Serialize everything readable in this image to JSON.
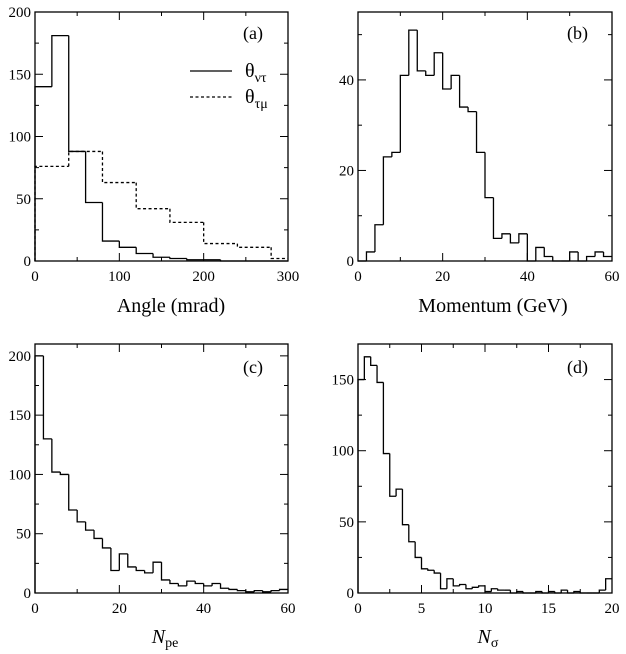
{
  "chart_data": [
    {
      "type": "bar",
      "panel_label": "(a)",
      "xlabel": "Angle  (mrad)",
      "ylabel": "",
      "xlim": [
        0,
        300
      ],
      "ylim": [
        0,
        200
      ],
      "xticks": [
        "0",
        "100",
        "200",
        "300"
      ],
      "yticks": [
        "0",
        "50",
        "100",
        "150",
        "200"
      ],
      "bin_edges": [
        0,
        20,
        40,
        60,
        80,
        100,
        120,
        140,
        160,
        180,
        200,
        220,
        240,
        260,
        280,
        300
      ],
      "series": [
        {
          "name": "θ_ντ",
          "legend_main": "θ",
          "legend_sub": "ντ",
          "style": "solid",
          "edges": [
            0,
            20,
            40,
            60,
            80,
            100,
            120,
            140,
            160,
            180,
            200,
            220,
            240,
            260,
            280,
            300
          ],
          "values": [
            140,
            181,
            88,
            47,
            16,
            11,
            6,
            3,
            2,
            1,
            1,
            0,
            0,
            0,
            0
          ]
        },
        {
          "name": "θ_τμ",
          "legend_main": "θ",
          "legend_sub": "τμ",
          "style": "dashed",
          "edges": [
            0,
            40,
            80,
            120,
            160,
            200,
            240,
            280,
            300
          ],
          "values": [
            76,
            88,
            63,
            42,
            31,
            14,
            11,
            2
          ]
        }
      ]
    },
    {
      "type": "bar",
      "panel_label": "(b)",
      "xlabel": "Momentum  (GeV)",
      "xlim": [
        0,
        60
      ],
      "ylim": [
        0,
        55
      ],
      "xticks": [
        "0",
        "20",
        "40",
        "60"
      ],
      "yticks": [
        "0",
        "20",
        "40"
      ],
      "series": [
        {
          "name": "momentum",
          "style": "solid",
          "edges": [
            0,
            2,
            4,
            6,
            8,
            10,
            12,
            14,
            16,
            18,
            20,
            22,
            24,
            26,
            28,
            30,
            32,
            34,
            36,
            38,
            40,
            42,
            44,
            46,
            48,
            50,
            52,
            54,
            56,
            58,
            60
          ],
          "values": [
            0,
            2,
            8,
            23,
            24,
            41,
            51,
            42,
            41,
            46,
            38,
            41,
            34,
            33,
            24,
            14,
            5,
            6,
            4,
            6,
            0,
            3,
            1,
            0,
            0,
            2,
            0,
            1,
            2,
            1
          ]
        }
      ]
    },
    {
      "type": "bar",
      "panel_label": "(c)",
      "xlabel_main": "N",
      "xlabel_sub": "pe",
      "xlim": [
        0,
        60
      ],
      "ylim": [
        0,
        210
      ],
      "xticks": [
        "0",
        "20",
        "40",
        "60"
      ],
      "yticks": [
        "0",
        "50",
        "100",
        "150",
        "200"
      ],
      "series": [
        {
          "name": "N_pe",
          "style": "solid",
          "edges": [
            0,
            2,
            4,
            6,
            8,
            10,
            12,
            14,
            16,
            18,
            20,
            22,
            24,
            26,
            28,
            30,
            32,
            34,
            36,
            38,
            40,
            42,
            44,
            46,
            48,
            50,
            52,
            54,
            56,
            58,
            60
          ],
          "values": [
            200,
            130,
            102,
            100,
            70,
            60,
            53,
            46,
            38,
            19,
            33,
            22,
            19,
            17,
            26,
            11,
            8,
            6,
            10,
            8,
            6,
            8,
            4,
            3,
            2,
            1,
            2,
            1,
            2,
            3
          ]
        }
      ]
    },
    {
      "type": "bar",
      "panel_label": "(d)",
      "xlabel_main": "N",
      "xlabel_sub": "σ",
      "xlim": [
        0,
        20
      ],
      "ylim": [
        0,
        175
      ],
      "xticks": [
        "0",
        "5",
        "10",
        "15",
        "20"
      ],
      "yticks": [
        "0",
        "50",
        "100",
        "150"
      ],
      "series": [
        {
          "name": "N_sigma",
          "style": "solid",
          "edges": [
            0,
            0.5,
            1,
            1.5,
            2,
            2.5,
            3,
            3.5,
            4,
            4.5,
            5,
            5.5,
            6,
            6.5,
            7,
            7.5,
            8,
            8.5,
            9,
            9.5,
            10,
            10.5,
            11,
            11.5,
            12,
            12.5,
            13,
            13.5,
            14,
            14.5,
            15,
            15.5,
            16,
            16.5,
            17,
            17.5,
            18,
            18.5,
            19,
            19.5,
            20
          ],
          "values": [
            150,
            166,
            160,
            148,
            98,
            68,
            73,
            48,
            36,
            25,
            17,
            16,
            14,
            3,
            10,
            5,
            6,
            3,
            4,
            5,
            1,
            3,
            2,
            2,
            0,
            1,
            0,
            0,
            1,
            0,
            1,
            0,
            2,
            0,
            1,
            0,
            0,
            0,
            2,
            10
          ]
        }
      ]
    }
  ]
}
